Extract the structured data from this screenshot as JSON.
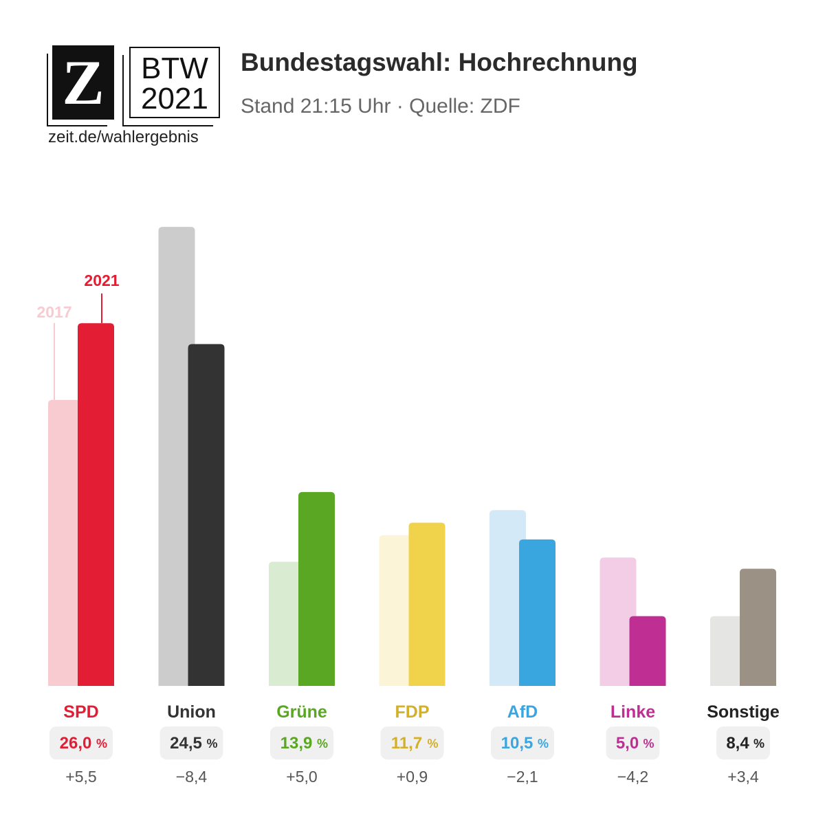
{
  "header": {
    "logo_letter": "Z",
    "logo_btw_line1": "BTW",
    "logo_btw_line2": "2021",
    "site": "zeit.de/wahlergebnis",
    "title": "Bundestagswahl: Hochrechnung",
    "subtitle": "Stand 21:15 Uhr · Quelle: ZDF"
  },
  "chart_data": {
    "type": "bar",
    "title": "Bundestagswahl: Hochrechnung",
    "ylim": [
      0,
      33
    ],
    "legend_labels": [
      "2017",
      "2021"
    ],
    "categories": [
      "SPD",
      "Union",
      "Grüne",
      "FDP",
      "AfD",
      "Linke",
      "Sonstige"
    ],
    "series": [
      {
        "name": "2017",
        "values": [
          20.5,
          32.9,
          8.9,
          10.8,
          12.6,
          9.2,
          5.0
        ]
      },
      {
        "name": "2021",
        "values": [
          26.0,
          24.5,
          13.9,
          11.7,
          10.5,
          5.0,
          8.4
        ]
      }
    ],
    "value_labels": [
      "26,0",
      "24,5",
      "13,9",
      "11,7",
      "10,5",
      "5,0",
      "8,4"
    ],
    "diff_labels": [
      "+5,5",
      "−8,4",
      "+5,0",
      "+0,9",
      "−2,1",
      "−4,2",
      "+3,4"
    ],
    "colors_2021": [
      "#e21d34",
      "#333333",
      "#5aa723",
      "#f0d34b",
      "#3aa6df",
      "#bf2f93",
      "#9b9184"
    ],
    "colors_2017": [
      "#f8cbd0",
      "#cccccc",
      "#d9ebd0",
      "#fbf4d6",
      "#d3e9f7",
      "#f2cde5",
      "#e5e5e3"
    ],
    "label_colors": [
      "#e21d34",
      "#333333",
      "#5aa723",
      "#d4af2a",
      "#3aa6df",
      "#bf2f93",
      "#222222"
    ]
  }
}
